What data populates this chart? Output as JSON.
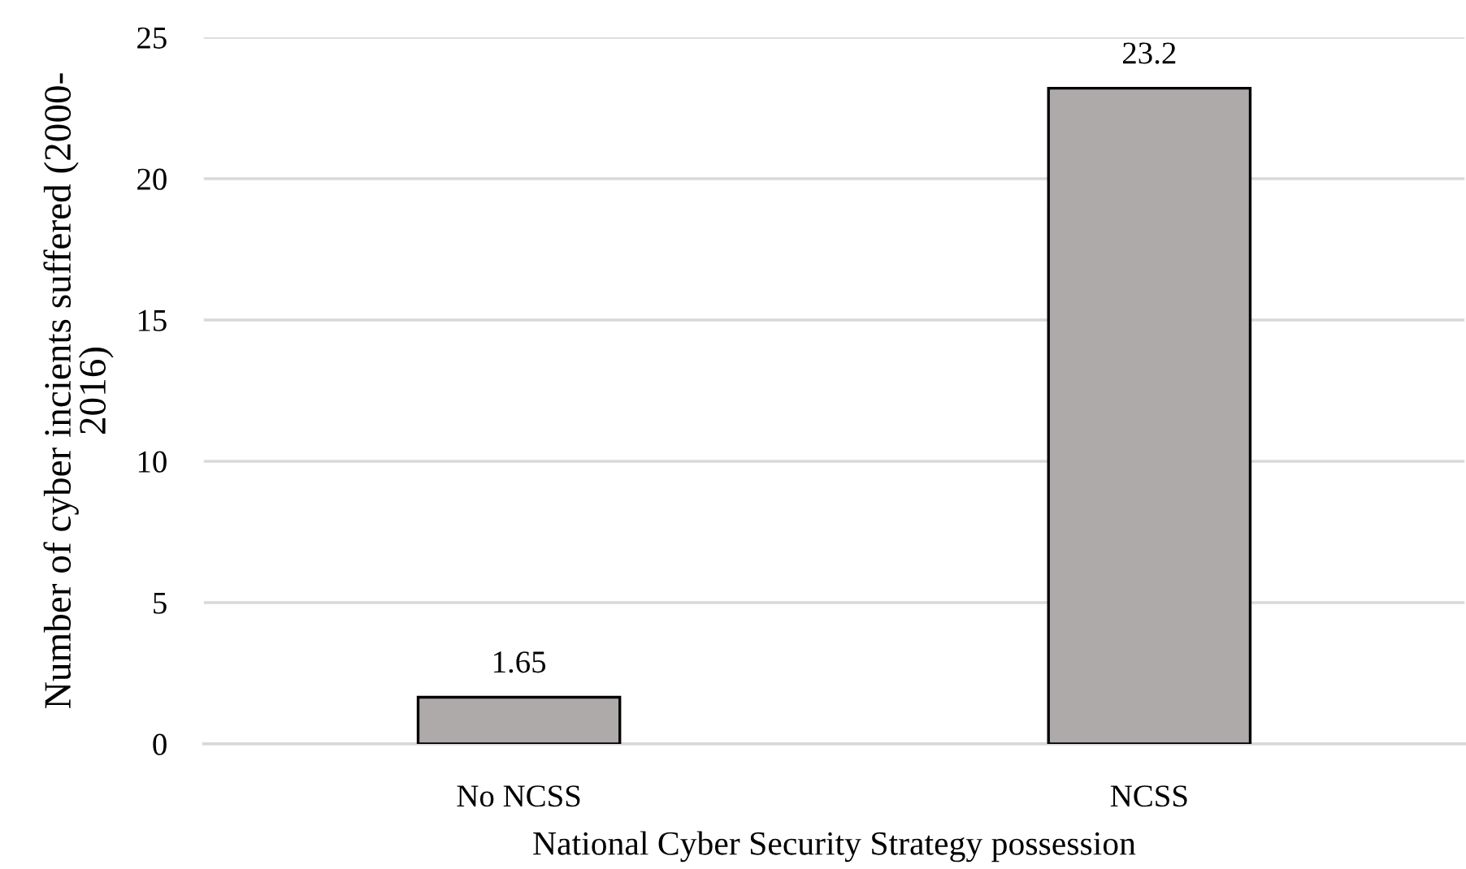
{
  "chart_data": {
    "type": "bar",
    "xlabel": "National Cyber Security Strategy possession",
    "ylabel": "Number of cyber incients suffered (2000-\n2016)",
    "categories": [
      "No NCSS",
      "NCSS"
    ],
    "values": [
      1.65,
      23.2
    ],
    "color": "#aeaaaa",
    "ylim": [
      0,
      25
    ],
    "yticks": [
      0,
      5,
      10,
      15,
      20,
      25
    ],
    "grid": "y",
    "data_labels": true
  }
}
